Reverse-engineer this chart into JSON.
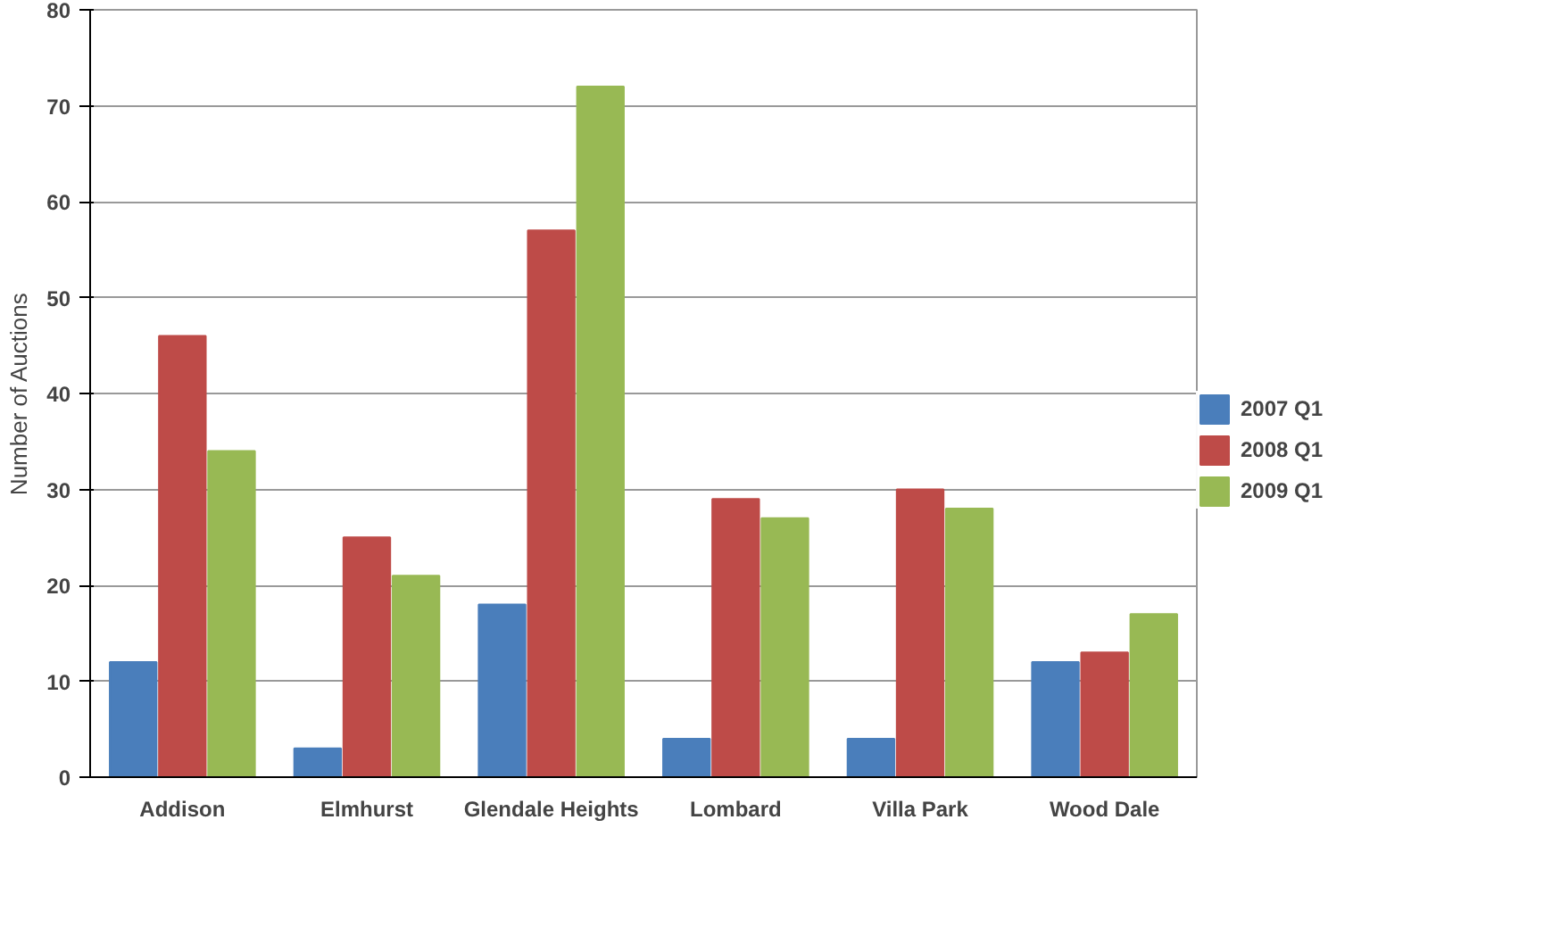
{
  "chart_data": {
    "type": "bar",
    "ylabel": "Number of Auctions",
    "categories": [
      "Addison",
      "Elmhurst",
      "Glendale Heights",
      "Lombard",
      "Villa Park",
      "Wood Dale"
    ],
    "series": [
      {
        "name": "2007 Q1",
        "color": "#4a7ebb",
        "values": [
          12,
          3,
          18,
          4,
          4,
          12
        ]
      },
      {
        "name": "2008 Q1",
        "color": "#be4b48",
        "values": [
          46,
          25,
          57,
          29,
          30,
          13
        ]
      },
      {
        "name": "2009 Q1",
        "color": "#98b954",
        "values": [
          34,
          21,
          72,
          27,
          28,
          17
        ]
      }
    ],
    "ylim": [
      0,
      80
    ],
    "yticks": [
      0,
      10,
      20,
      30,
      40,
      50,
      60,
      70,
      80
    ],
    "grid": "y",
    "legend": "right"
  }
}
